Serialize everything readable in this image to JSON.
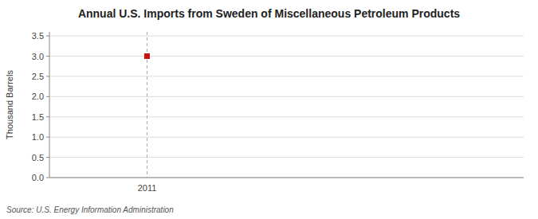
{
  "chart_data": {
    "type": "scatter",
    "title": "Annual U.S. Imports from Sweden of Miscellaneous Petroleum Products",
    "y_label": "Thousand Barrels",
    "source": "Source: U.S. Energy Information Administration",
    "x": [
      2011
    ],
    "values": [
      3.0
    ],
    "color": "#cc1111",
    "marker": "square",
    "xlim": [
      2010.3,
      2013.7
    ],
    "ylim": [
      0.0,
      3.6
    ],
    "xticks": [
      2011
    ],
    "yticks": [
      {
        "value": 0.0,
        "label": "0.0"
      },
      0.5,
      {
        "value": 1.0,
        "label": "1.0"
      },
      1.5,
      {
        "value": 2.0,
        "label": "2.0"
      },
      2.5,
      {
        "value": 3.0,
        "label": "3.0"
      },
      3.5
    ],
    "grid": true
  }
}
